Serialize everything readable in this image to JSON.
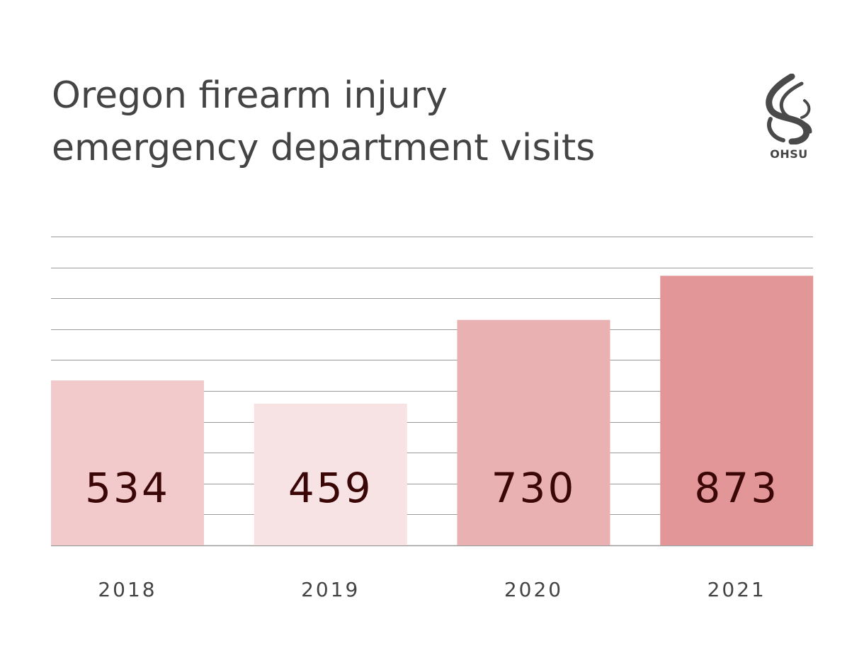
{
  "title": {
    "line1": "Oregon firearm injury",
    "line2": "emergency department visits"
  },
  "logo": {
    "text": "OHSU",
    "icon": "ohsu-flame-logo"
  },
  "colors": {
    "bars": [
      "#f2cacc",
      "#f8e3e4",
      "#eab1b2",
      "#e39697"
    ],
    "value_text": "#3a0606",
    "gridline": "#9a9a9a",
    "text": "#444444"
  },
  "chart_data": {
    "type": "bar",
    "title": "Oregon firearm injury emergency department visits",
    "categories": [
      "2018",
      "2019",
      "2020",
      "2021"
    ],
    "values": [
      534,
      459,
      730,
      873
    ],
    "data_labels": [
      "534",
      "459",
      "730",
      "873"
    ],
    "ylim": [
      0,
      1000
    ],
    "grid": true,
    "legend": "none"
  }
}
